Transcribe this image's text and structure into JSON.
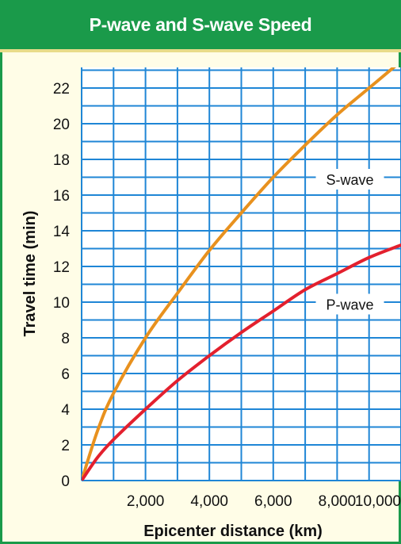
{
  "chart_data": {
    "type": "line",
    "title": "P-wave and S-wave Speed",
    "xlabel": "Epicenter distance (km)",
    "ylabel": "Travel time (min)",
    "xlim": [
      0,
      10000
    ],
    "ylim": [
      0,
      23
    ],
    "grid": true,
    "x_ticks": [
      2000,
      4000,
      6000,
      8000,
      10000
    ],
    "x_tick_labels": [
      "2,000",
      "4,000",
      "6,000",
      "8,000",
      "10,000"
    ],
    "y_ticks": [
      0,
      2,
      4,
      6,
      8,
      10,
      12,
      14,
      16,
      18,
      20,
      22
    ],
    "y_tick_labels": [
      "0",
      "2",
      "4",
      "6",
      "8",
      "10",
      "12",
      "14",
      "16",
      "18",
      "20",
      "22"
    ],
    "series": [
      {
        "name": "S-wave",
        "color": "#e8911e",
        "x": [
          0,
          500,
          1000,
          2000,
          3000,
          4000,
          5000,
          6000,
          7000,
          8000,
          9000,
          10000
        ],
        "y": [
          0,
          2.8,
          4.9,
          8.0,
          10.5,
          12.9,
          15.0,
          17.0,
          18.8,
          20.5,
          22.0,
          23.5
        ]
      },
      {
        "name": "P-wave",
        "color": "#e3202e",
        "x": [
          0,
          500,
          1000,
          2000,
          3000,
          4000,
          5000,
          6000,
          7000,
          8000,
          9000,
          10000
        ],
        "y": [
          0,
          1.3,
          2.3,
          4.0,
          5.6,
          7.0,
          8.3,
          9.5,
          10.7,
          11.6,
          12.5,
          13.2
        ]
      }
    ]
  },
  "colors": {
    "header": "#1a9a4a",
    "background": "#fffde7",
    "grid": "#1f86d6"
  }
}
